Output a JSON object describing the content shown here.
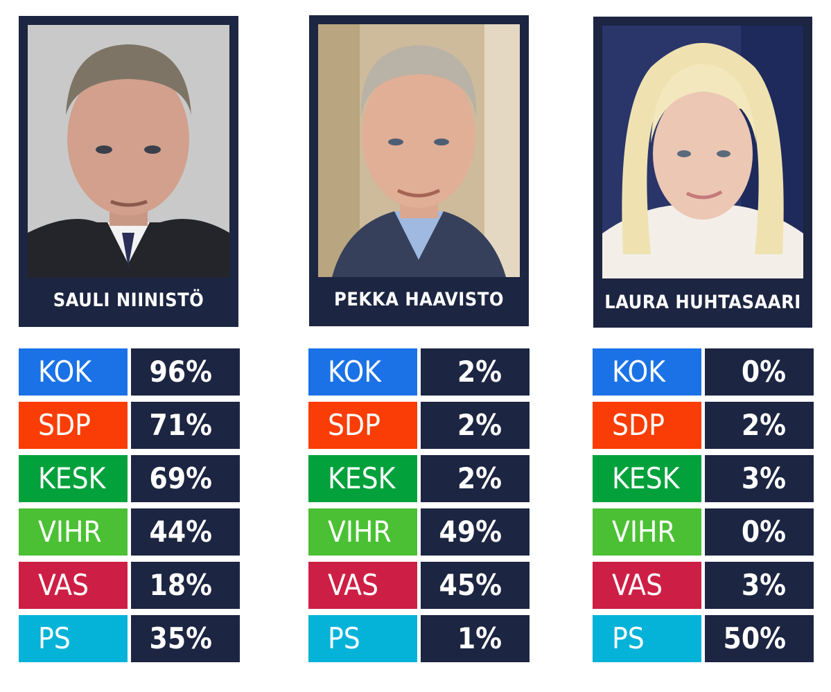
{
  "parties": [
    "KOK",
    "SDP",
    "KESK",
    "VIHR",
    "VAS",
    "PS"
  ],
  "party_colors": {
    "KOK": "#1a72e6",
    "SDP": "#fa3d06",
    "KESK": "#02a13b",
    "VIHR": "#4bc034",
    "VAS": "#cd1f45",
    "PS": "#06b3d8"
  },
  "panel_color": "#1c2541",
  "candidates": [
    {
      "name": "SAULI NIINISTÖ",
      "values": [
        "96%",
        "71%",
        "69%",
        "44%",
        "18%",
        "35%"
      ]
    },
    {
      "name": "PEKKA HAAVISTO",
      "values": [
        "2%",
        "2%",
        "2%",
        "49%",
        "45%",
        "1%"
      ]
    },
    {
      "name": "LAURA HUHTASAARI",
      "values": [
        "0%",
        "2%",
        "3%",
        "0%",
        "3%",
        "50%"
      ]
    }
  ],
  "chart_data": {
    "type": "table",
    "categories": [
      "KOK",
      "SDP",
      "KESK",
      "VIHR",
      "VAS",
      "PS"
    ],
    "series": [
      {
        "name": "SAULI NIINISTÖ",
        "values": [
          96,
          71,
          69,
          44,
          18,
          35
        ]
      },
      {
        "name": "PEKKA HAAVISTO",
        "values": [
          2,
          2,
          2,
          49,
          45,
          1
        ]
      },
      {
        "name": "LAURA HUHTASAARI",
        "values": [
          0,
          2,
          3,
          0,
          3,
          50
        ]
      }
    ]
  }
}
